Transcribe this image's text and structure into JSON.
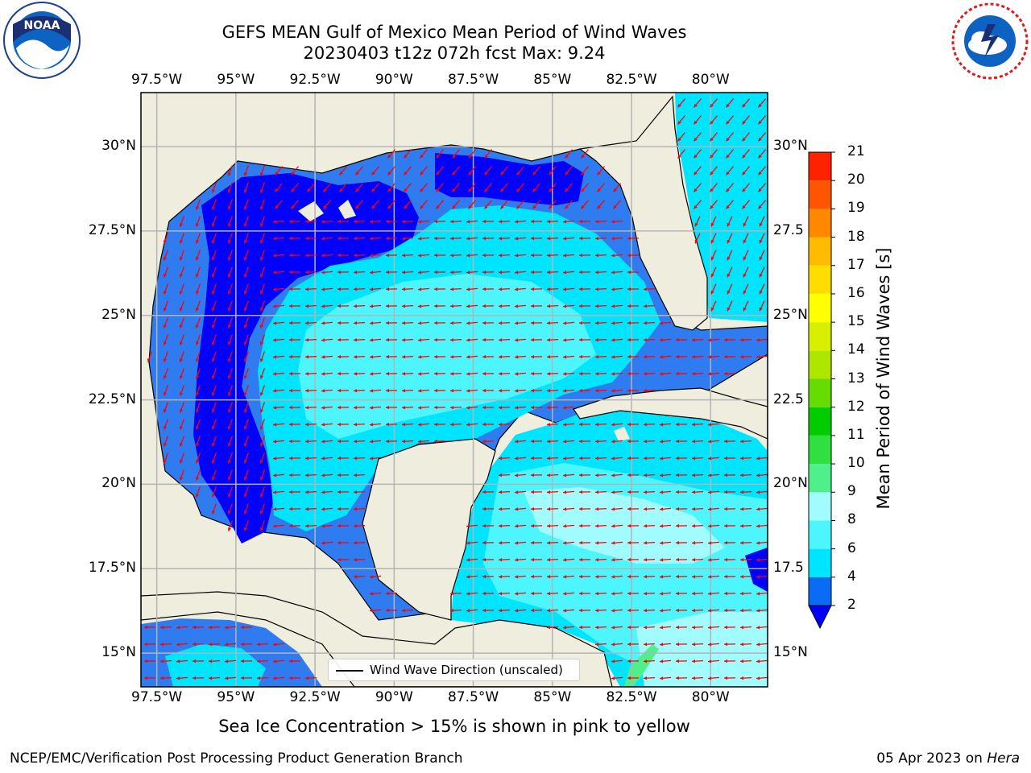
{
  "title": {
    "line1": "GEFS MEAN Gulf of Mexico Mean Period of Wind Waves",
    "line2": "20230403 t12z 072h fcst   Max: 9.24"
  },
  "logos": {
    "left": "NOAA",
    "right": "NATIONAL WEATHER SERVICE",
    "left_icon": "noaa-logo-icon",
    "right_icon": "nws-logo-icon"
  },
  "axes": {
    "lon_ticks": [
      -97.5,
      -95,
      -92.5,
      -90,
      -87.5,
      -85,
      -82.5,
      -80
    ],
    "lon_labels": [
      "97.5°W",
      "95°W",
      "92.5°W",
      "90°W",
      "87.5°W",
      "85°W",
      "82.5°W",
      "80°W"
    ],
    "lat_ticks": [
      30,
      27.5,
      25,
      22.5,
      20,
      17.5,
      15
    ],
    "lat_labels_left": [
      "30°N",
      "27.5°N",
      "25°N",
      "22.5°N",
      "20°N",
      "17.5°N",
      "15°N"
    ],
    "lat_labels_right": [
      "30°N",
      "27.5",
      "25°N",
      "22.5",
      "20°N",
      "17.5",
      "15°N"
    ],
    "lon_range": [
      -98,
      -78.2
    ],
    "lat_range": [
      14,
      31.6
    ]
  },
  "colorbar": {
    "label": "Mean Period of Wind Waves [s]",
    "levels": [
      2,
      4,
      6,
      8,
      9,
      10,
      11,
      12,
      13,
      14,
      15,
      16,
      17,
      18,
      19,
      20,
      21
    ],
    "tick_labels": [
      "2",
      "4",
      "6",
      "8",
      "9",
      "10",
      "11",
      "12",
      "13",
      "14",
      "15",
      "16",
      "17",
      "18",
      "19",
      "20",
      "21"
    ],
    "colors": [
      "#0a6cf5",
      "#00e5ff",
      "#4df5ff",
      "#a0fcff",
      "#4ff08b",
      "#30e040",
      "#00cc00",
      "#66dd00",
      "#aee600",
      "#d8f000",
      "#ffff00",
      "#ffdd00",
      "#ffbb00",
      "#ff8800",
      "#ff5500",
      "#ff2200"
    ],
    "under_color": "#0000ff",
    "extend": "min"
  },
  "legend": {
    "label": "Wind Wave Direction (unscaled)"
  },
  "colors": {
    "land": "#efedde",
    "arrow": "#ff0000",
    "grid": "#b4b4b4"
  },
  "chart_data": {
    "type": "heatmap",
    "title": "GEFS MEAN Gulf of Mexico Mean Period of Wind Waves",
    "subtitle": "20230403 t12z 072h fcst   Max: 9.24",
    "max": 9.24,
    "colorbar_label": "Mean Period of Wind Waves [s]",
    "zones": [
      {
        "region": "western Gulf (Texas / Mexico coast)",
        "period_s": "under 2"
      },
      {
        "region": "northern Gulf shelf (Louisiana)",
        "period_s": "under 2"
      },
      {
        "region": "western Gulf coastal margin",
        "period_s": "2-4"
      },
      {
        "region": "central and eastern Gulf",
        "period_s": "6-8"
      },
      {
        "region": "Florida west coast",
        "period_s": "4-6"
      },
      {
        "region": "Yucatan Channel / Caribbean",
        "period_s": "6-9"
      },
      {
        "region": "Gulf of Honduras / NE Honduras coast",
        "period_s": "9-10"
      }
    ],
    "wind_wave_direction": "mostly westward (east to west) in central Gulf and Caribbean; southward along western Gulf"
  },
  "footer": {
    "note": "Sea Ice Concentration > 15% is shown in pink to yellow",
    "left": "NCEP/EMC/Verification Post Processing Product Generation Branch",
    "date": "05 Apr 2023 on ",
    "machine": "Hera"
  }
}
